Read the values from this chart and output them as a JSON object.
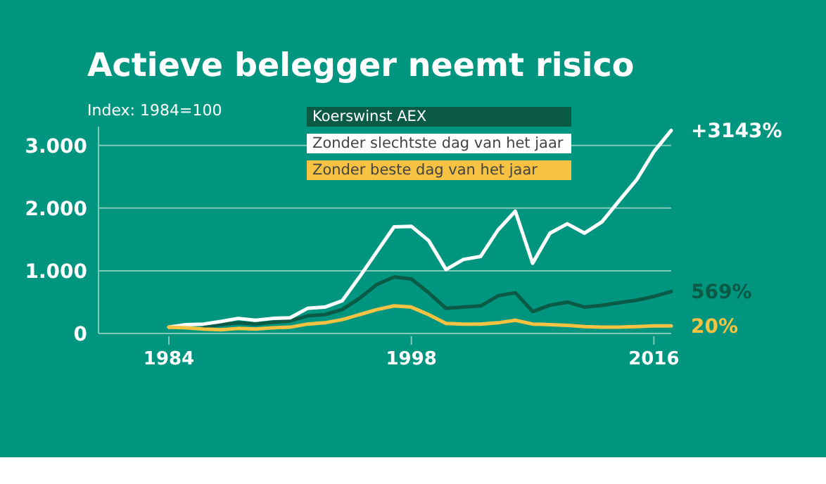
{
  "chart_data": {
    "type": "line",
    "title": "Actieve belegger neemt risico",
    "categories": [
      "1984",
      null,
      null,
      null,
      null,
      null,
      null,
      null,
      null,
      null,
      null,
      null,
      null,
      null,
      "1998",
      null,
      null,
      null,
      null,
      null,
      null,
      null,
      null,
      null,
      null,
      null,
      null,
      null,
      "2016",
      null
    ],
    "series": [
      {
        "name": "Koerswinst AEX",
        "color": "#0b5a45",
        "values": [
          null,
          null,
          110,
          140,
          170,
          150,
          180,
          200,
          280,
          300,
          380,
          560,
          780,
          900,
          870,
          650,
          400,
          420,
          440,
          600,
          650,
          350,
          450,
          500,
          420,
          450,
          490,
          530,
          590,
          670
        ]
      },
      {
        "name": "Zonder slechtste dag van het jaar",
        "color": "#ffffff",
        "values": [
          100,
          140,
          150,
          190,
          240,
          210,
          240,
          250,
          400,
          420,
          520,
          900,
          1300,
          1700,
          1710,
          1480,
          1020,
          1180,
          1230,
          1650,
          1950,
          1120,
          1600,
          1750,
          1600,
          1780,
          2120,
          2450,
          2900,
          3240
        ]
      },
      {
        "name": "Zonder beste dag van het jaar",
        "color": "#f5c242",
        "values": [
          100,
          90,
          70,
          60,
          80,
          70,
          90,
          100,
          150,
          170,
          220,
          300,
          380,
          440,
          420,
          300,
          160,
          150,
          150,
          170,
          210,
          150,
          140,
          130,
          110,
          100,
          100,
          110,
          120,
          120
        ]
      }
    ],
    "annotations": [
      "Index: 1984=100",
      "569%",
      "+3143%",
      "20%"
    ],
    "ylim": [
      0,
      3300
    ],
    "yticks": [
      {
        "value": 0,
        "label": "0"
      },
      {
        "value": 1000,
        "label": "1.000"
      },
      {
        "value": 2000,
        "label": "2.000"
      },
      {
        "value": 3000,
        "label": "3.000"
      }
    ],
    "grid": "y",
    "legend": "top"
  }
}
